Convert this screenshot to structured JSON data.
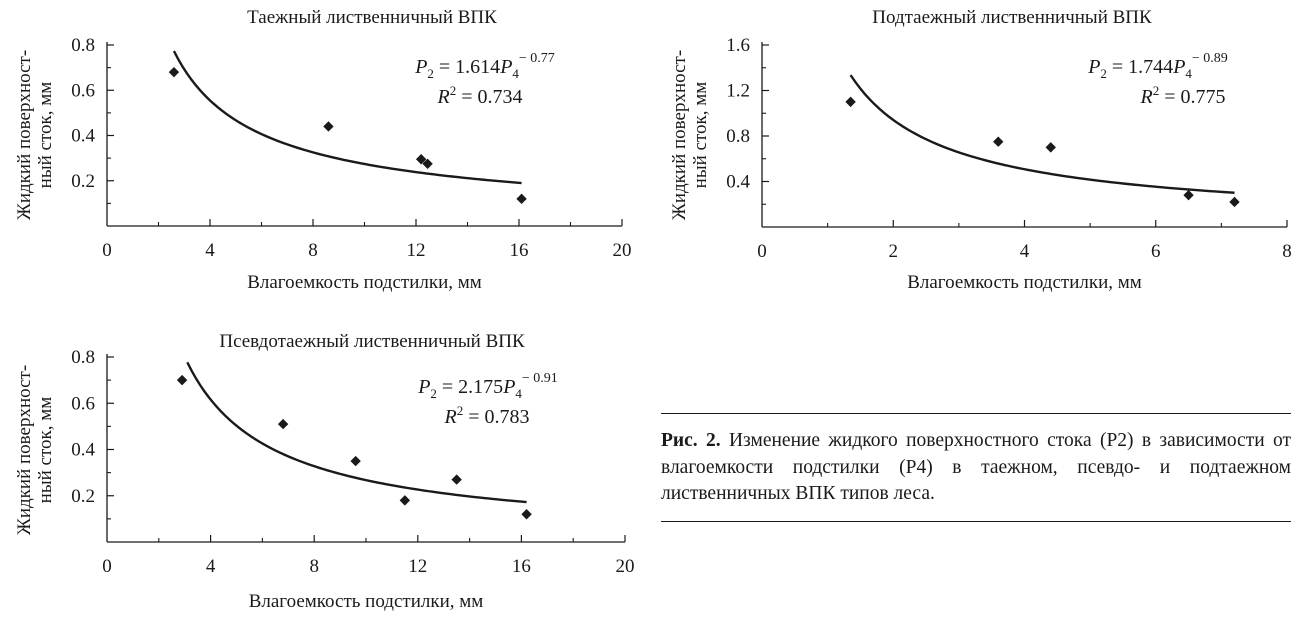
{
  "chart_data": [
    {
      "type": "scatter",
      "title": "Таежный лиственничный ВПК",
      "xlabel": "Влагоемкость подстилки, мм",
      "ylabel_line1": "Жидкий поверхност-",
      "ylabel_line2": "ный сток, мм",
      "xlim": [
        0,
        20
      ],
      "ylim": [
        0,
        0.8
      ],
      "xticks": [
        0,
        4,
        8,
        12,
        16,
        20
      ],
      "yticks": [
        0.2,
        0.4,
        0.6,
        0.8
      ],
      "ytick_labels": [
        "0.2",
        "0.4",
        "0.6",
        "0.8"
      ],
      "points": [
        [
          2.6,
          0.68
        ],
        [
          8.6,
          0.44
        ],
        [
          12.2,
          0.295
        ],
        [
          12.45,
          0.275
        ],
        [
          16.1,
          0.12
        ]
      ],
      "fit": {
        "a": 1.614,
        "b": -0.77,
        "x_start": 2.6,
        "x_end": 16.1
      },
      "equation": {
        "coef": "1.614",
        "exp": "− 0.77",
        "r2": "0.734"
      }
    },
    {
      "type": "scatter",
      "title": "Подтаежный лиственничный ВПК",
      "xlabel": "Влагоемкость подстилки, мм",
      "ylabel_line1": "Жидкий поверхност-",
      "ylabel_line2": "ный сток, мм",
      "xlim": [
        0,
        8
      ],
      "ylim": [
        0,
        1.6
      ],
      "xticks": [
        0,
        2,
        4,
        6,
        8
      ],
      "yticks": [
        0.4,
        0.8,
        1.2,
        1.6
      ],
      "ytick_labels": [
        "0.4",
        "0.8",
        "1.2",
        "1.6"
      ],
      "points": [
        [
          1.35,
          1.1
        ],
        [
          3.6,
          0.75
        ],
        [
          4.4,
          0.7
        ],
        [
          6.5,
          0.28
        ],
        [
          7.2,
          0.22
        ]
      ],
      "fit": {
        "a": 1.744,
        "b": -0.89,
        "x_start": 1.35,
        "x_end": 7.2
      },
      "equation": {
        "coef": "1.744",
        "exp": "− 0.89",
        "r2": "0.775"
      }
    },
    {
      "type": "scatter",
      "title": "Псевдотаежный лиственничный ВПК",
      "xlabel": "Влагоемкость подстилки, мм",
      "ylabel_line1": "Жидкий поверхност-",
      "ylabel_line2": "ный сток, мм",
      "xlim": [
        0,
        20
      ],
      "ylim": [
        0,
        0.8
      ],
      "xticks": [
        0,
        4,
        8,
        12,
        16,
        20
      ],
      "yticks": [
        0.2,
        0.4,
        0.6,
        0.8
      ],
      "ytick_labels": [
        "0.2",
        "0.4",
        "0.6",
        "0.8"
      ],
      "points": [
        [
          2.9,
          0.7
        ],
        [
          6.8,
          0.51
        ],
        [
          9.6,
          0.35
        ],
        [
          11.5,
          0.18
        ],
        [
          13.5,
          0.27
        ],
        [
          16.2,
          0.12
        ]
      ],
      "fit": {
        "a": 2.175,
        "b": -0.91,
        "x_start": 3.1,
        "x_end": 16.2
      },
      "equation": {
        "coef": "2.175",
        "exp": "− 0.91",
        "r2": "0.783"
      }
    }
  ],
  "caption": {
    "label": "Рис. 2.",
    "text": "Изменение жидкого поверхностного стока (P2) в зависимости от влагоемкости подстилки (P4) в таежном, псевдо- и подтаежном лиственничных ВПК типов леса."
  }
}
